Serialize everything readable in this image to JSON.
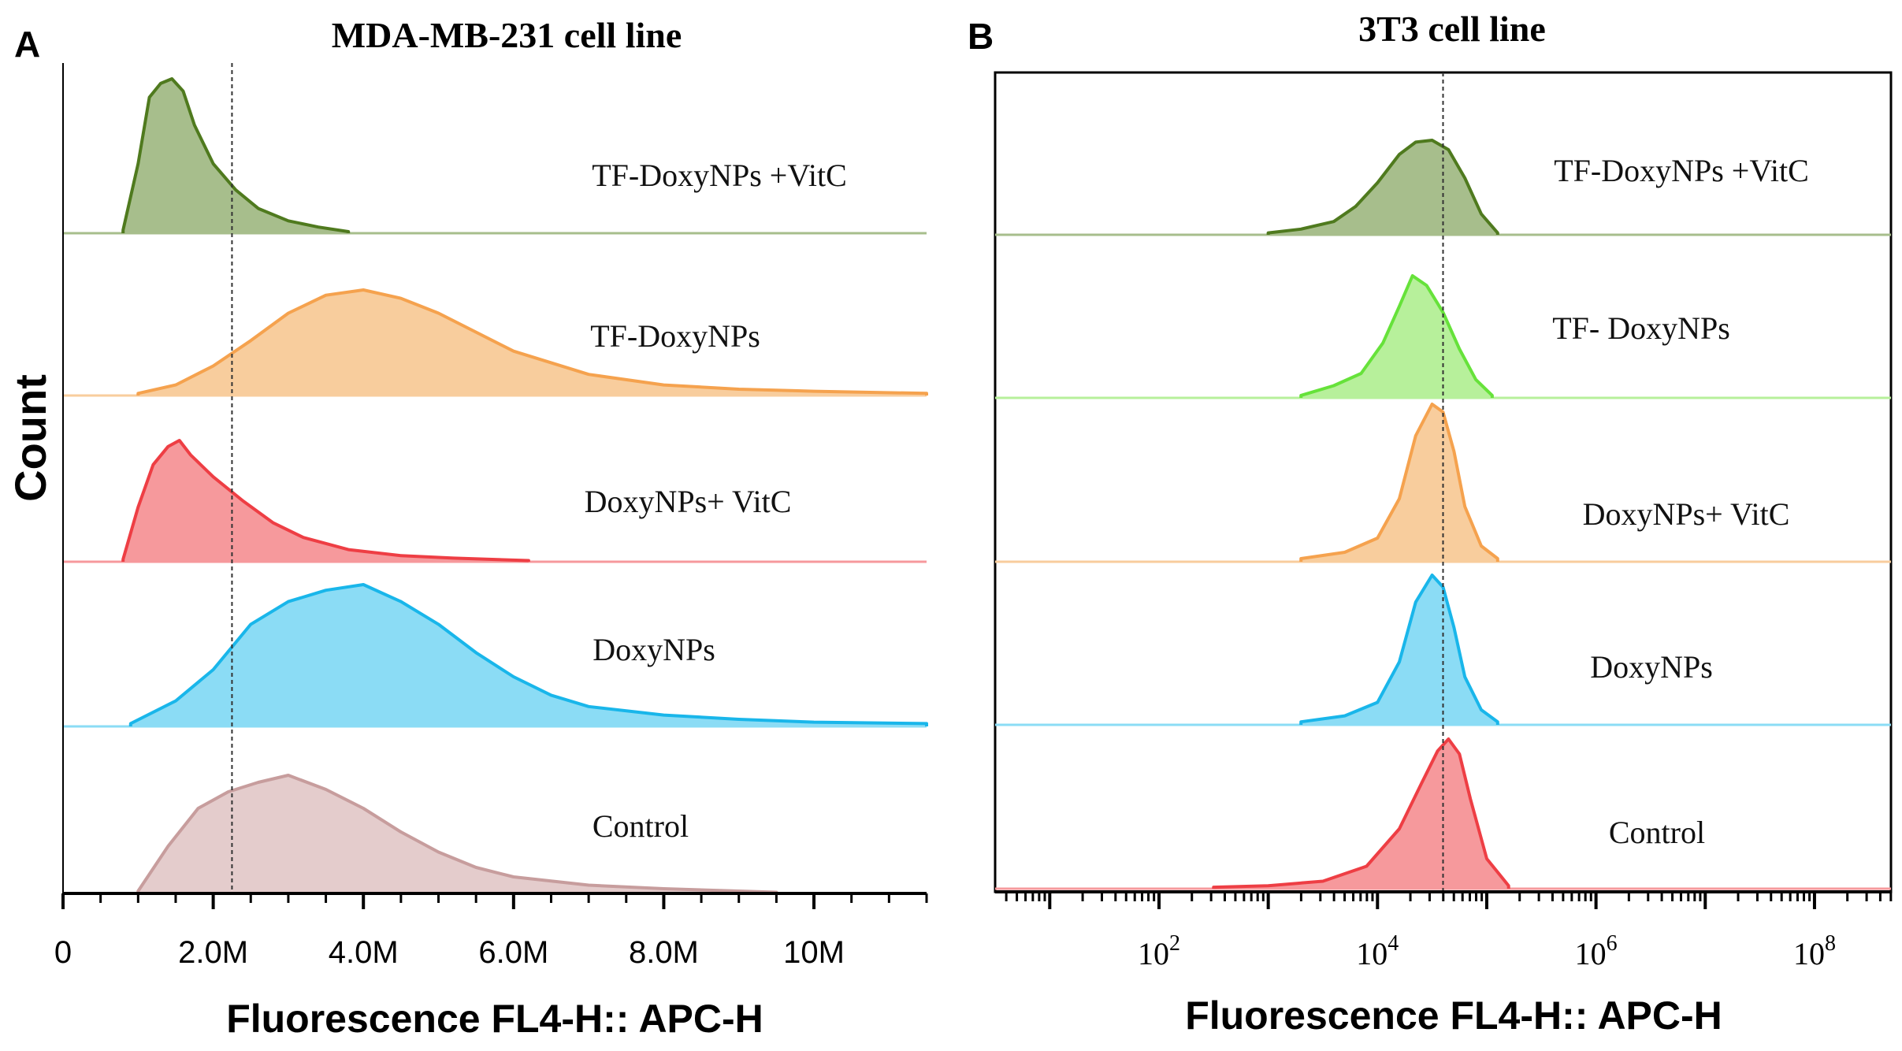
{
  "colors": {
    "tf_vitc_line": "#4f7a1e",
    "tf_vitc_fill": "#a7be8c",
    "tf_b_line": "#66e23a",
    "tf_b_fill": "#b7f09b",
    "orange_line": "#f5a24e",
    "orange_fill": "#f8cd9d",
    "red_line": "#ee3e44",
    "red_fill": "#f6999c",
    "blue_line": "#19b6ea",
    "blue_fill": "#8bdcf5",
    "ctrl_line": "#c79d9d",
    "ctrl_fill": "#e4cccc",
    "axis": "#000000",
    "dashed": "#333333"
  },
  "chart_data": [
    {
      "type": "area",
      "panel": "A",
      "title": "MDA-MB-231 cell line",
      "xlabel": "Fluorescence FL4-H:: APC-H",
      "ylabel": "Count",
      "x_scale": "linear",
      "xlim": [
        0,
        11500000
      ],
      "xticks": [
        0,
        2000000,
        4000000,
        6000000,
        8000000,
        10000000
      ],
      "xtick_labels": [
        "0",
        "2.0M",
        "4.0M",
        "6.0M",
        "8.0M",
        "10M"
      ],
      "reference_line_x": 2250000,
      "series": [
        {
          "name": "TF-DoxyNPs +VitC",
          "color": "tf_vitc",
          "xmin": 800000,
          "xmax": 3800000,
          "x": [
            800000,
            1000000,
            1150000,
            1300000,
            1450000,
            1600000,
            1750000,
            2000000,
            2300000,
            2600000,
            3000000,
            3400000,
            3800000
          ],
          "y": [
            0.02,
            0.45,
            0.88,
            0.97,
            1.0,
            0.92,
            0.7,
            0.45,
            0.28,
            0.16,
            0.08,
            0.04,
            0.01
          ]
        },
        {
          "name": "TF-DoxyNPs",
          "color": "orange",
          "xmin": 1000000,
          "xmax": 11500000,
          "x": [
            1000000,
            1500000,
            2000000,
            2500000,
            3000000,
            3500000,
            4000000,
            4500000,
            5000000,
            5500000,
            6000000,
            7000000,
            8000000,
            9000000,
            10000000,
            11500000
          ],
          "y": [
            0.02,
            0.1,
            0.28,
            0.52,
            0.78,
            0.95,
            1.0,
            0.92,
            0.78,
            0.6,
            0.42,
            0.2,
            0.1,
            0.06,
            0.04,
            0.02
          ]
        },
        {
          "name": "DoxyNPs+ VitC",
          "color": "red",
          "xmin": 800000,
          "xmax": 6200000,
          "x": [
            800000,
            1000000,
            1200000,
            1400000,
            1550000,
            1700000,
            2000000,
            2400000,
            2800000,
            3200000,
            3800000,
            4500000,
            5200000,
            6200000
          ],
          "y": [
            0.02,
            0.45,
            0.8,
            0.95,
            1.0,
            0.88,
            0.7,
            0.5,
            0.32,
            0.2,
            0.1,
            0.05,
            0.03,
            0.01
          ]
        },
        {
          "name": "DoxyNPs",
          "color": "blue",
          "xmin": 900000,
          "xmax": 11500000,
          "x": [
            900000,
            1500000,
            2000000,
            2500000,
            3000000,
            3500000,
            4000000,
            4500000,
            5000000,
            5500000,
            6000000,
            6500000,
            7000000,
            8000000,
            9000000,
            10000000,
            11500000
          ],
          "y": [
            0.02,
            0.18,
            0.4,
            0.72,
            0.88,
            0.96,
            1.0,
            0.88,
            0.72,
            0.52,
            0.35,
            0.22,
            0.14,
            0.08,
            0.05,
            0.03,
            0.02
          ]
        },
        {
          "name": "Control",
          "color": "ctrl",
          "xmin": 1000000,
          "xmax": 9500000,
          "x": [
            1000000,
            1400000,
            1800000,
            2200000,
            2600000,
            3000000,
            3500000,
            4000000,
            4500000,
            5000000,
            5500000,
            6000000,
            7000000,
            8000000,
            9500000
          ],
          "y": [
            0.02,
            0.4,
            0.72,
            0.86,
            0.94,
            1.0,
            0.88,
            0.72,
            0.52,
            0.35,
            0.22,
            0.14,
            0.07,
            0.04,
            0.01
          ]
        }
      ]
    },
    {
      "type": "area",
      "panel": "B",
      "title": "3T3 cell line",
      "xlabel": "Fluorescence FL4-H:: APC-H",
      "x_scale": "log",
      "xlim_log10": [
        0.5,
        8.7
      ],
      "xticks_log10": [
        2,
        4,
        6,
        8
      ],
      "xtick_bases": [
        "10",
        "10",
        "10",
        "10"
      ],
      "xtick_exponents": [
        "2",
        "4",
        "6",
        "8"
      ],
      "reference_line_log10": 4.6,
      "series": [
        {
          "name": "TF-DoxyNPs +VitC",
          "color": "tf_vitc",
          "x_log10": [
            3.0,
            3.3,
            3.6,
            3.8,
            4.0,
            4.2,
            4.35,
            4.5,
            4.65,
            4.8,
            4.95,
            5.1
          ],
          "y": [
            0.02,
            0.06,
            0.14,
            0.3,
            0.55,
            0.85,
            0.98,
            1.0,
            0.9,
            0.6,
            0.22,
            0.02
          ]
        },
        {
          "name": "TF- DoxyNPs",
          "color": "tf_b",
          "x_log10": [
            3.3,
            3.6,
            3.85,
            4.05,
            4.2,
            4.32,
            4.45,
            4.6,
            4.75,
            4.9,
            5.05
          ],
          "y": [
            0.02,
            0.1,
            0.2,
            0.45,
            0.75,
            1.0,
            0.92,
            0.7,
            0.4,
            0.15,
            0.02
          ]
        },
        {
          "name": "DoxyNPs+ VitC",
          "color": "orange",
          "x_log10": [
            3.3,
            3.7,
            4.0,
            4.2,
            4.35,
            4.5,
            4.6,
            4.7,
            4.8,
            4.95,
            5.1
          ],
          "y": [
            0.02,
            0.06,
            0.15,
            0.4,
            0.8,
            1.0,
            0.95,
            0.7,
            0.35,
            0.1,
            0.02
          ]
        },
        {
          "name": "DoxyNPs",
          "color": "blue",
          "x_log10": [
            3.3,
            3.7,
            4.0,
            4.2,
            4.35,
            4.5,
            4.6,
            4.7,
            4.8,
            4.95,
            5.1
          ],
          "y": [
            0.02,
            0.06,
            0.15,
            0.42,
            0.82,
            1.0,
            0.92,
            0.65,
            0.32,
            0.1,
            0.02
          ]
        },
        {
          "name": "Control",
          "color": "red",
          "x_log10": [
            2.5,
            3.0,
            3.5,
            3.9,
            4.2,
            4.4,
            4.55,
            4.65,
            4.75,
            4.85,
            5.0,
            5.2
          ],
          "y": [
            0.01,
            0.02,
            0.05,
            0.15,
            0.4,
            0.7,
            0.92,
            1.0,
            0.9,
            0.6,
            0.2,
            0.02
          ]
        }
      ]
    }
  ]
}
